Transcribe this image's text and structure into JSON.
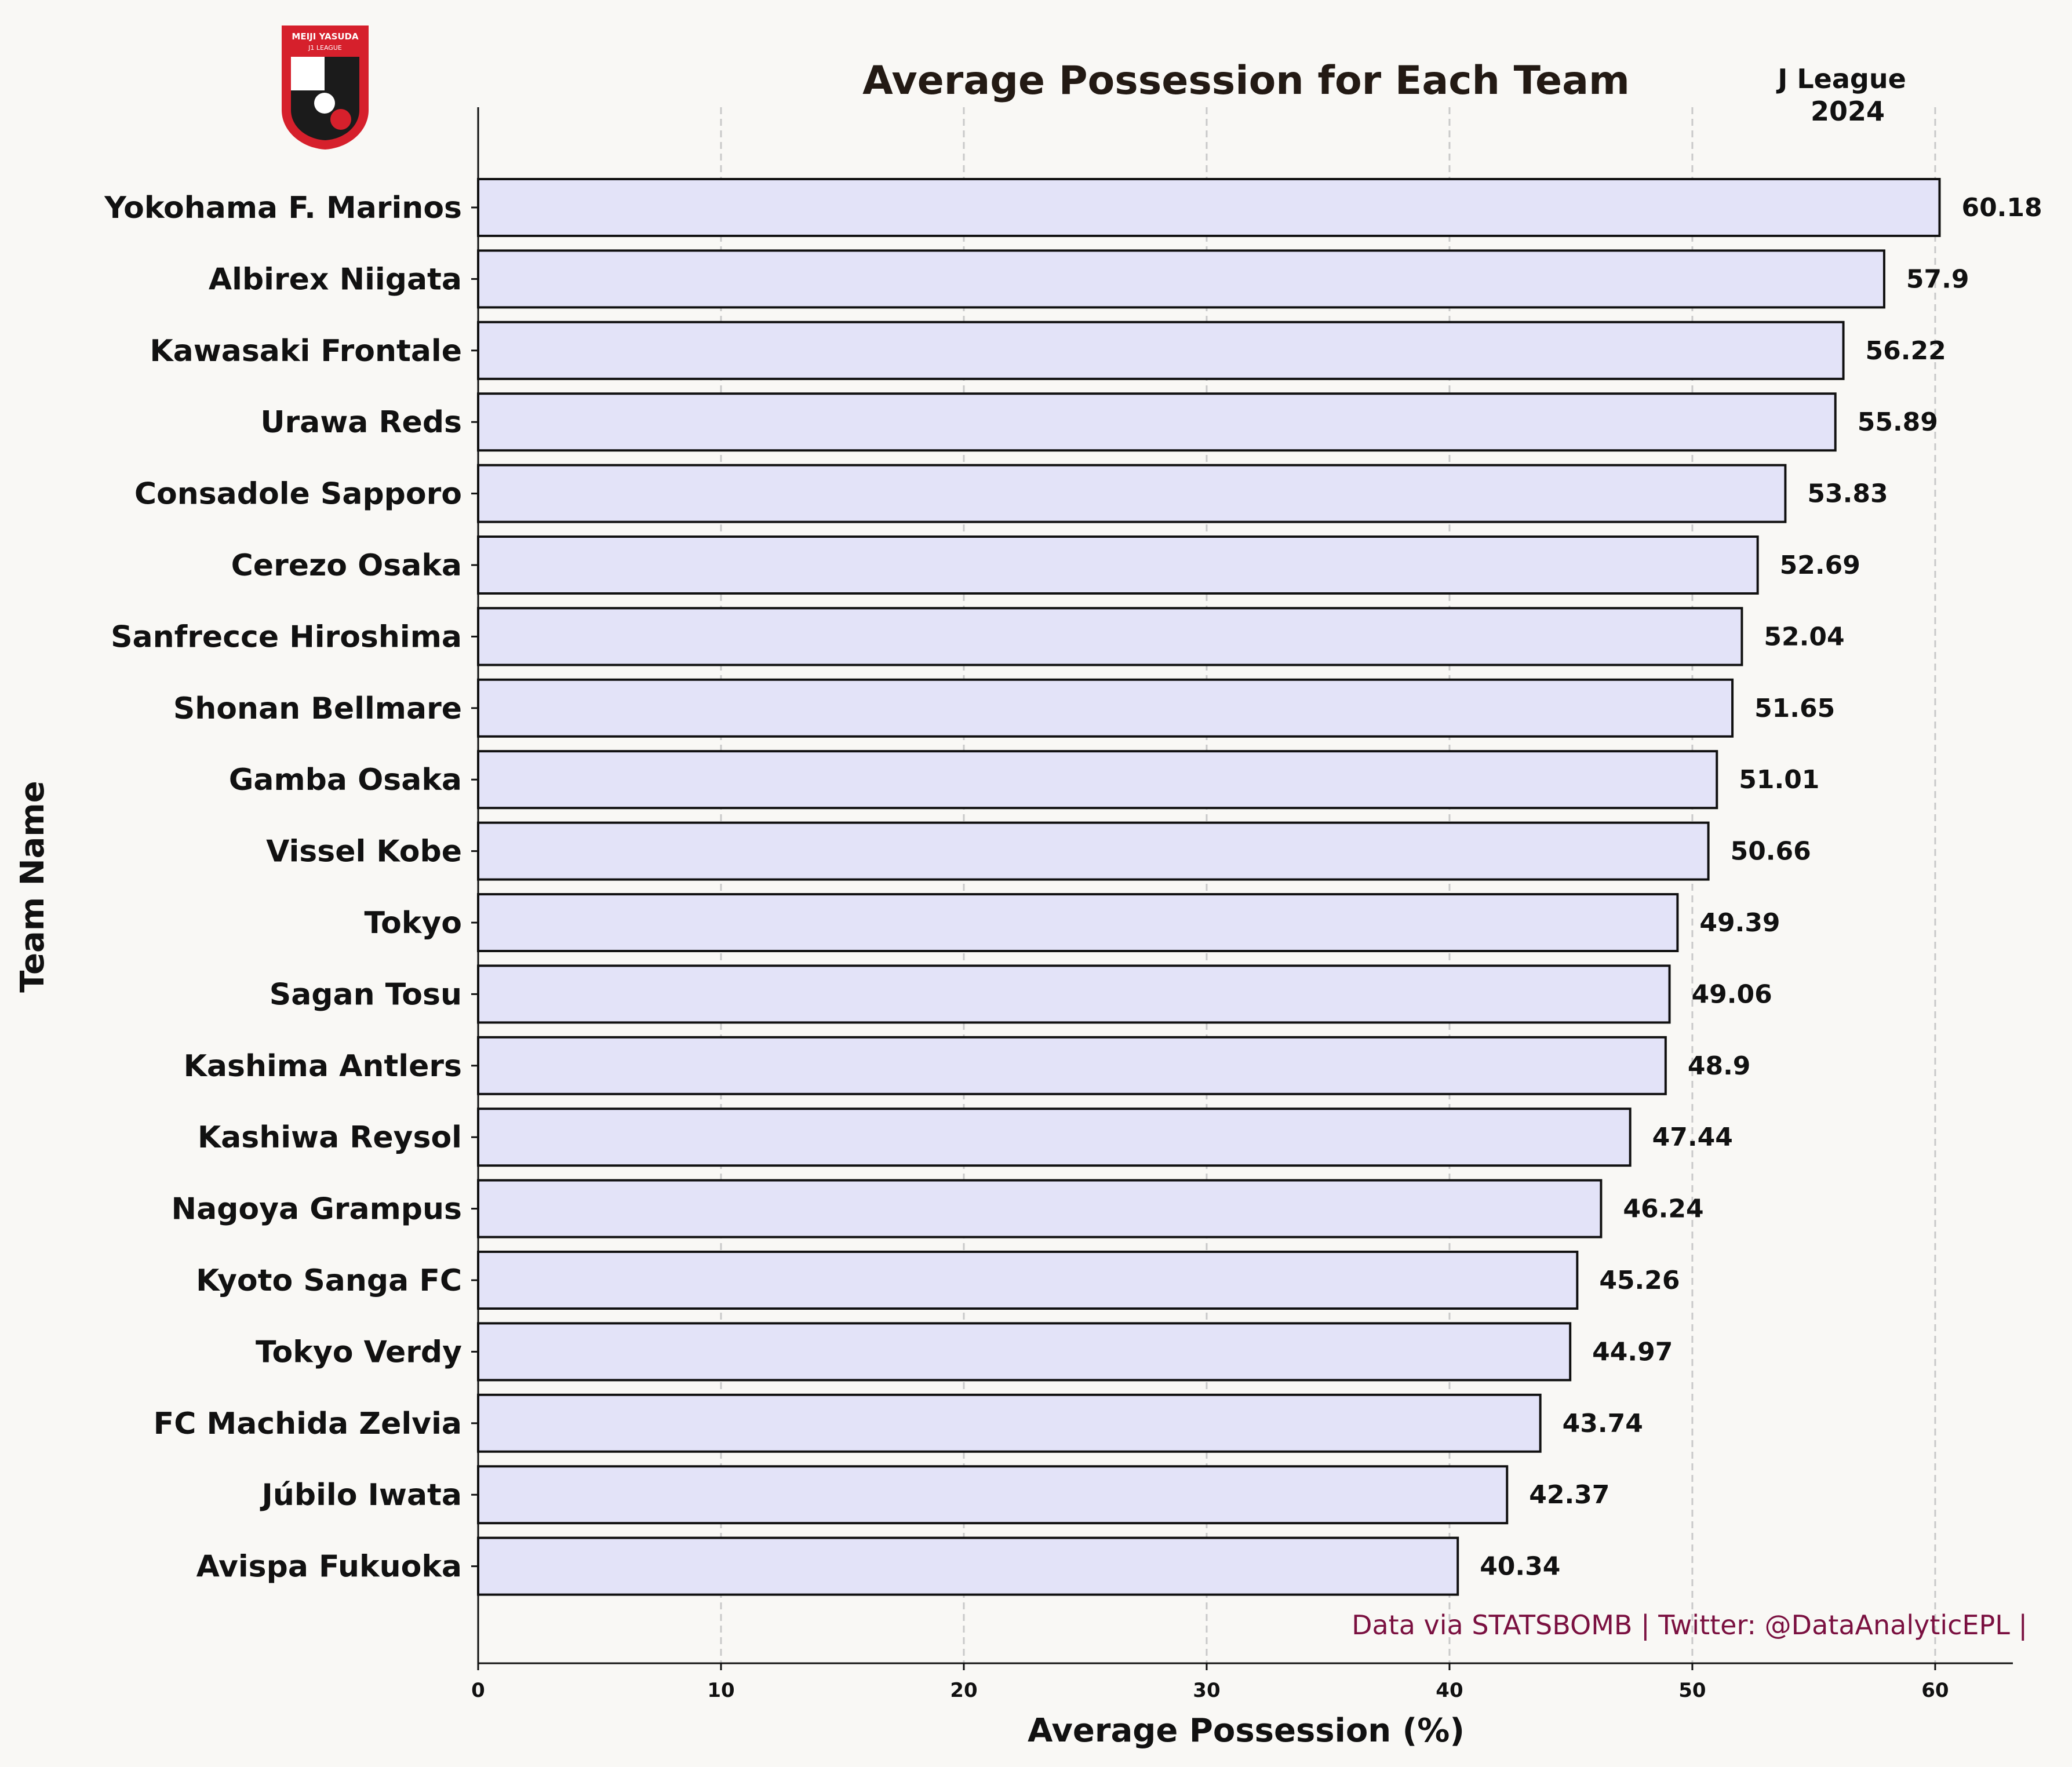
{
  "colors": {
    "background": "#f9f8f5",
    "bar_fill": "#e3e3f8",
    "bar_edge": "#111111",
    "grid": "#c9c9c9",
    "text": "#111111",
    "title": "#231a14",
    "footer": "#7a1040",
    "logo_red": "#d6202c",
    "logo_black": "#1b1b1b"
  },
  "logo": {
    "icon": "j-league-logo-icon",
    "text_top": "MEIJI YASUDA",
    "text_bottom": "J1 LEAGUE"
  },
  "header": {
    "league": "J League",
    "season": "2024"
  },
  "footer": {
    "credit": "Data via STATSBOMB | Twitter: @DataAnalyticEPL |"
  },
  "chart_data": {
    "type": "bar",
    "orientation": "horizontal",
    "title": "Average Possession for Each Team",
    "xlabel": "Average Possession (%)",
    "ylabel": "Team Name",
    "xlim": [
      0,
      63.2
    ],
    "xticks": [
      0,
      10,
      20,
      30,
      40,
      50,
      60
    ],
    "grid": "x-axis dashed",
    "categories": [
      "Yokohama F. Marinos",
      "Albirex Niigata",
      "Kawasaki Frontale",
      "Urawa Reds",
      "Consadole Sapporo",
      "Cerezo Osaka",
      "Sanfrecce Hiroshima",
      "Shonan Bellmare",
      "Gamba Osaka",
      "Vissel Kobe",
      "Tokyo",
      "Sagan Tosu",
      "Kashima Antlers",
      "Kashiwa Reysol",
      "Nagoya Grampus",
      "Kyoto Sanga FC",
      "Tokyo Verdy",
      "FC Machida Zelvia",
      "Júbilo Iwata",
      "Avispa Fukuoka"
    ],
    "values": [
      60.18,
      57.9,
      56.22,
      55.89,
      53.83,
      52.69,
      52.04,
      51.65,
      51.01,
      50.66,
      49.39,
      49.06,
      48.9,
      47.44,
      46.24,
      45.26,
      44.97,
      43.74,
      42.37,
      40.34
    ],
    "value_labels": [
      "60.18",
      "57.9",
      "56.22",
      "55.89",
      "53.83",
      "52.69",
      "52.04",
      "51.65",
      "51.01",
      "50.66",
      "49.39",
      "49.06",
      "48.9",
      "47.44",
      "46.24",
      "45.26",
      "44.97",
      "43.74",
      "42.37",
      "40.34"
    ]
  }
}
